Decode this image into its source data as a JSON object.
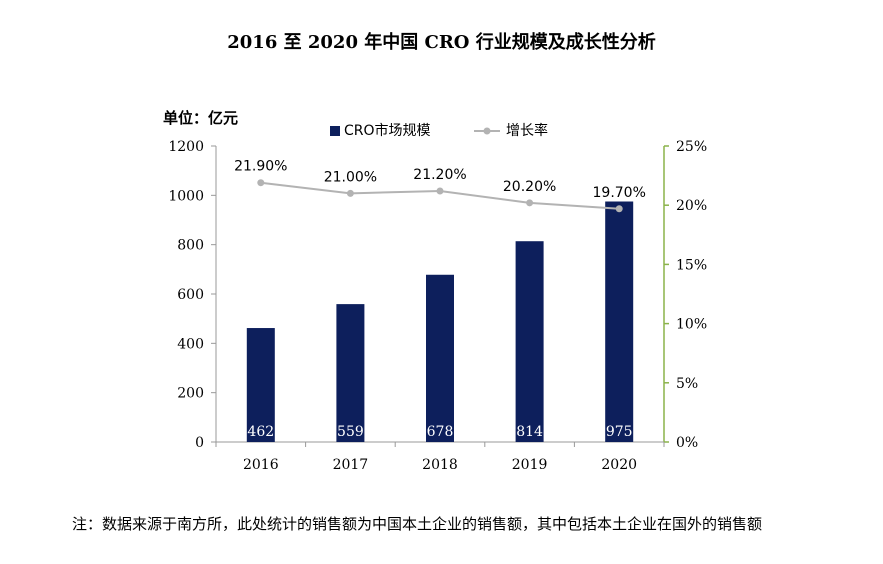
{
  "title": "2016 至 2020 年中国 CRO 行业规模及成长性分析",
  "unit_label": "单位：亿元",
  "note": "注：数据来源于南方所，此处统计的销售额为中国本土企业的销售额，其中包括本土企业在国外的销售额",
  "colors": {
    "bar": "#0d1f5c",
    "line": "#b3b3b3",
    "axis_right": "#8bb34a",
    "axis_left": "#999999"
  },
  "chart_data": {
    "type": "bar",
    "categories": [
      "2016",
      "2017",
      "2018",
      "2019",
      "2020"
    ],
    "series": [
      {
        "name": "CRO市场规模",
        "type": "bar",
        "axis": "left",
        "values": [
          462,
          559,
          678,
          814,
          975
        ],
        "labels": [
          "462",
          "559",
          "678",
          "814",
          "975"
        ]
      },
      {
        "name": "增长率",
        "type": "line",
        "axis": "right",
        "values": [
          21.9,
          21.0,
          21.2,
          20.2,
          19.7
        ],
        "labels": [
          "21.90%",
          "21.00%",
          "21.20%",
          "20.20%",
          "19.70%"
        ]
      }
    ],
    "ylim_left": [
      0,
      1200
    ],
    "yticks_left": [
      "0",
      "200",
      "400",
      "600",
      "800",
      "1000",
      "1200"
    ],
    "ylim_right": [
      0,
      25
    ],
    "yticks_right": [
      "0%",
      "5%",
      "10%",
      "15%",
      "20%",
      "25%"
    ],
    "grid": false,
    "legend_position": "top"
  }
}
